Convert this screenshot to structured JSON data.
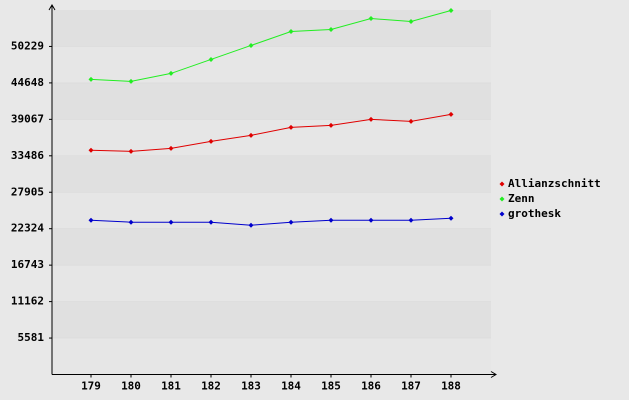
{
  "chart_data": {
    "type": "line",
    "categories": [
      "179",
      "180",
      "181",
      "182",
      "183",
      "184",
      "185",
      "186",
      "187",
      "188"
    ],
    "series": [
      {
        "name": "Allianzschnitt",
        "color": "#e00000",
        "values": [
          34330,
          34170,
          34630,
          35700,
          36620,
          37840,
          38150,
          39070,
          38760,
          39830
        ]
      },
      {
        "name": "Zenn",
        "color": "#22ee22",
        "values": [
          45180,
          44875,
          46100,
          48240,
          50380,
          52520,
          52830,
          54510,
          54050,
          55730
        ]
      },
      {
        "name": "grothesk",
        "color": "#0000cc",
        "values": [
          23620,
          23320,
          23320,
          23320,
          22860,
          23320,
          23620,
          23620,
          23620,
          23930
        ]
      }
    ],
    "ylim": [
      0,
      55810
    ],
    "yticks": [
      5581,
      11162,
      16743,
      22324,
      27905,
      33486,
      39067,
      44648,
      50229
    ],
    "grid": true,
    "legend": "right"
  }
}
